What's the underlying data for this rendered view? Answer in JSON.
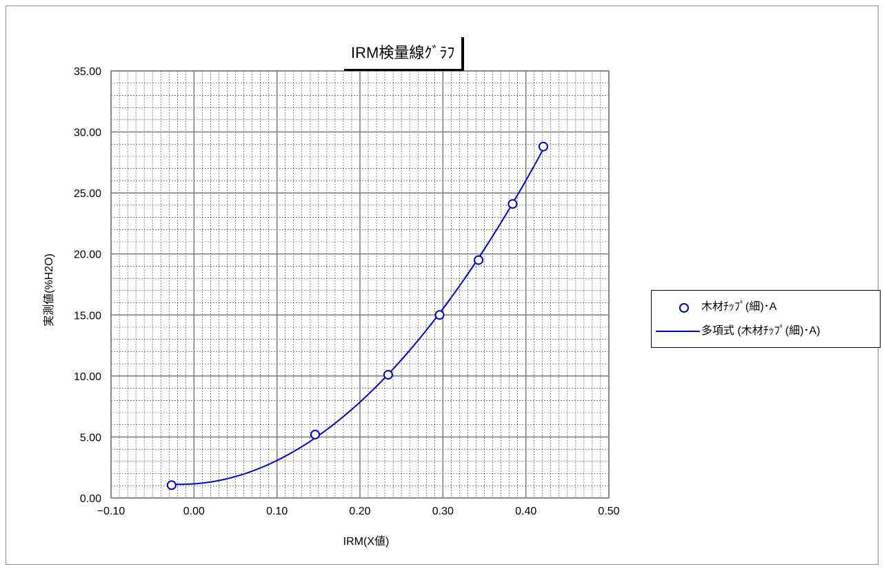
{
  "chart_data": {
    "type": "scatter",
    "title": "IRM検量線ｸﾞﾗﾌ",
    "xlabel": "IRM(X値)",
    "ylabel": "実測値(%H2O)",
    "xlim": [
      -0.1,
      0.5
    ],
    "ylim": [
      0,
      35
    ],
    "x_ticks": [
      "−0.10",
      "0.00",
      "0.10",
      "0.20",
      "0.30",
      "0.40",
      "0.50"
    ],
    "y_ticks": [
      "0.00",
      "5.00",
      "10.00",
      "15.00",
      "20.00",
      "25.00",
      "30.00",
      "35.00"
    ],
    "grid": true,
    "legend_position": "right",
    "series": [
      {
        "name": "木材ﾁｯﾌﾟ(細)･A",
        "kind": "points",
        "color": "#0000cc",
        "x": [
          -0.027,
          0.146,
          0.234,
          0.296,
          0.343,
          0.384,
          0.421
        ],
        "y": [
          1.05,
          5.2,
          10.1,
          15.0,
          19.5,
          24.1,
          28.8
        ]
      },
      {
        "name": "多項式 (木材ﾁｯﾌﾟ(細)･A)",
        "kind": "trendline",
        "color": "#0000cc",
        "x": [
          -0.027,
          0.146,
          0.234,
          0.296,
          0.343,
          0.384,
          0.421
        ],
        "y": [
          1.05,
          5.2,
          10.1,
          15.0,
          19.5,
          24.1,
          28.8
        ]
      }
    ]
  }
}
